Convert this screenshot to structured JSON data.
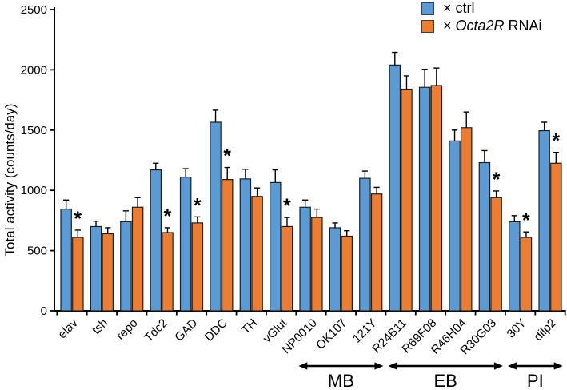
{
  "chart_data": {
    "type": "bar",
    "title": "",
    "xlabel": "",
    "ylabel": "Total activity (counts/day)",
    "ylim": [
      0,
      2500
    ],
    "y_ticks": [
      0,
      500,
      1000,
      1500,
      2000,
      2500
    ],
    "grid": false,
    "legend_position": "top-right",
    "categories": [
      "elav",
      "tsh",
      "repo",
      "Tdc2",
      "GAD",
      "DDC",
      "TH",
      "vGlut",
      "NP0010",
      "OK107",
      "121Y",
      "R24B11",
      "R69F08",
      "R46H04",
      "R30G03",
      "30Y",
      "dilp2"
    ],
    "series": [
      {
        "name": "× ctrl",
        "color": "#5B9BD5",
        "values": [
          845,
          700,
          740,
          1170,
          1110,
          1565,
          1095,
          1065,
          860,
          690,
          1100,
          2040,
          1855,
          1410,
          1230,
          740,
          1495
        ],
        "errors": [
          75,
          45,
          90,
          55,
          70,
          100,
          80,
          105,
          60,
          40,
          60,
          105,
          150,
          90,
          100,
          50,
          70
        ]
      },
      {
        "name": "× Octa2R RNAi",
        "color": "#ED7D31",
        "values": [
          610,
          640,
          860,
          650,
          730,
          1090,
          950,
          700,
          775,
          620,
          970,
          1840,
          1870,
          1520,
          940,
          610,
          1225
        ],
        "errors": [
          60,
          50,
          80,
          40,
          50,
          100,
          70,
          75,
          70,
          45,
          55,
          110,
          145,
          130,
          55,
          45,
          90
        ]
      }
    ],
    "significance_markers": {
      "symbol": "*",
      "on_series": "× Octa2R RNAi",
      "categories": [
        "elav",
        "Tdc2",
        "GAD",
        "DDC",
        "vGlut",
        "R30G03",
        "30Y",
        "dilp2"
      ]
    },
    "group_annotations": [
      {
        "label": "MB",
        "from": "NP0010",
        "to": "121Y"
      },
      {
        "label": "EB",
        "from": "R24B11",
        "to": "R30G03"
      },
      {
        "label": "PI",
        "from": "30Y",
        "to": "dilp2"
      }
    ]
  },
  "legend": {
    "items": [
      {
        "swatch_color": "#5B9BD5",
        "prefix": "× ",
        "italic_part": "",
        "rest": "ctrl"
      },
      {
        "swatch_color": "#ED7D31",
        "prefix": "× ",
        "italic_part": "Octa2R",
        "rest": " RNAi"
      }
    ]
  }
}
